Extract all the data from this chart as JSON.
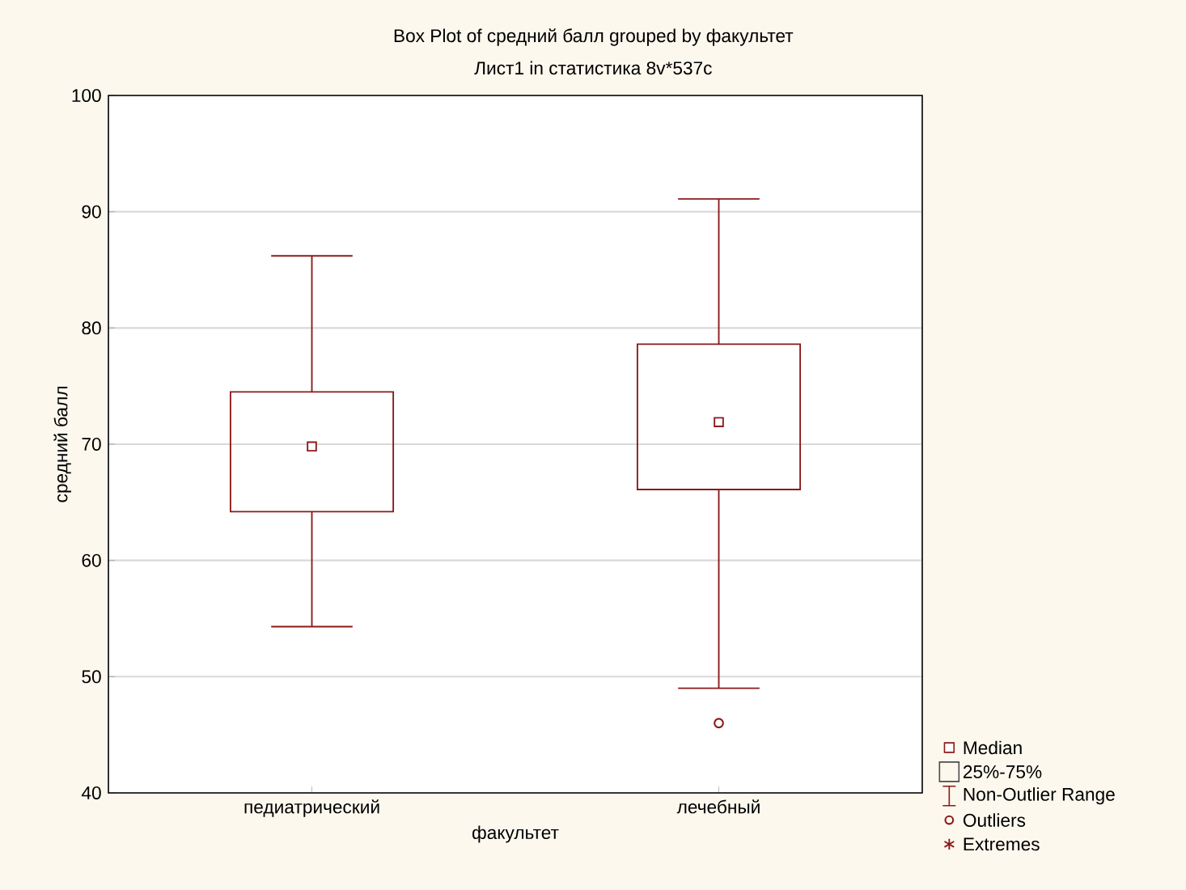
{
  "chart_data": {
    "type": "box",
    "title": "Box Plot of средний балл grouped by факультет",
    "subtitle": "Лист1 in статистика 8v*537c",
    "xlabel": "факультет",
    "ylabel": "средний балл",
    "categories": [
      "педиатрический",
      "лечебный"
    ],
    "color": "#8b1a1a",
    "boxes": [
      {
        "low": 54.3,
        "q1": 64.2,
        "median": 69.8,
        "q3": 74.5,
        "high": 86.2
      },
      {
        "low": 49.0,
        "q1": 66.1,
        "median": 71.9,
        "q3": 78.6,
        "high": 91.1,
        "outliers": [
          46.0
        ]
      }
    ],
    "ylim": [
      40,
      100
    ],
    "yticks": [
      40,
      50,
      60,
      70,
      80,
      90,
      100
    ],
    "grid": "y",
    "annotations": [
      "Median",
      "25%-75%",
      "Non-Outlier Range",
      "Outliers",
      "Extremes"
    ]
  }
}
